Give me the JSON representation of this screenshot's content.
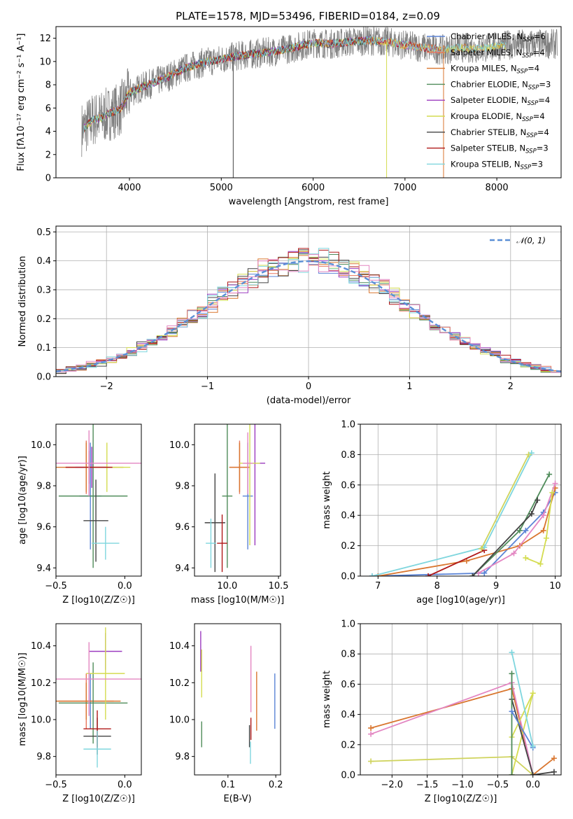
{
  "colors": {
    "Chabrier MILES": "#5b84d6",
    "Salpeter MILES": "#e8775e",
    "Kroupa MILES": "#d9762f",
    "Chabrier ELODIE": "#4f8c5a",
    "Salpeter ELODIE": "#9b3bbf",
    "Kroupa ELODIE": "#d4dc50",
    "Chabrier STELIB": "#444444",
    "Salpeter STELIB": "#b01818",
    "Kroupa STELIB": "#7fd6de",
    "pink": "#e386c2",
    "olive": "#cfd35c",
    "normal": "#5b8fd6"
  },
  "chart_data": [
    {
      "id": "spectrum",
      "type": "line",
      "title": "PLATE=1578, MJD=53496, FIBERID=0184, z=0.09",
      "xlabel": "wavelength [Angstrom, rest frame]",
      "ylabel": "Flux [fλ10⁻¹⁷ erg cm⁻² s⁻¹ A⁻¹]",
      "xlim": [
        3200,
        8700
      ],
      "ylim": [
        0,
        13
      ],
      "xticks": [
        4000,
        5000,
        6000,
        7000,
        8000
      ],
      "yticks": [
        0,
        2,
        4,
        6,
        8,
        10,
        12
      ],
      "grid": false,
      "legend_position": "top-right",
      "legend": [
        {
          "label": "Chabrier MILES, N",
          "sub": "SSP",
          "suffix": "=6",
          "series": "Chabrier MILES"
        },
        {
          "label": "Salpeter MILES, N",
          "sub": "SSP",
          "suffix": "=4",
          "series": "Salpeter MILES"
        },
        {
          "label": "Kroupa MILES, N",
          "sub": "SSP",
          "suffix": "=4",
          "series": "Kroupa MILES"
        },
        {
          "label": "Chabrier ELODIE, N",
          "sub": "SSP",
          "suffix": "=3",
          "series": "Chabrier ELODIE"
        },
        {
          "label": "Salpeter ELODIE, N",
          "sub": "SSP",
          "suffix": "=4",
          "series": "Salpeter ELODIE"
        },
        {
          "label": "Kroupa ELODIE, N",
          "sub": "SSP",
          "suffix": "=4",
          "series": "Kroupa ELODIE"
        },
        {
          "label": "Chabrier STELIB, N",
          "sub": "SSP",
          "suffix": "=4",
          "series": "Chabrier STELIB"
        },
        {
          "label": "Salpeter STELIB, N",
          "sub": "SSP",
          "suffix": "=3",
          "series": "Salpeter STELIB"
        },
        {
          "label": "Kroupa STELIB, N",
          "sub": "SSP",
          "suffix": "=3",
          "series": "Kroupa STELIB"
        }
      ],
      "continuum": {
        "x": [
          3500,
          3600,
          3700,
          3800,
          3900,
          4000,
          4200,
          4400,
          4600,
          4800,
          5000,
          5200,
          5400,
          5600,
          5800,
          6000,
          6200,
          6400,
          6600,
          6800,
          7000,
          7200,
          7400,
          7600,
          7800,
          8000,
          8200
        ],
        "y": [
          4.2,
          5.0,
          5.2,
          5.6,
          5.9,
          7.3,
          8.0,
          8.6,
          9.4,
          9.9,
          10.2,
          10.5,
          10.7,
          10.9,
          11.2,
          11.6,
          11.5,
          11.7,
          11.8,
          11.7,
          11.4,
          11.2,
          11.0,
          11.2,
          11.1,
          11.3,
          11.5
        ]
      }
    },
    {
      "id": "residuals",
      "type": "line",
      "xlabel": "(data-model)/error",
      "ylabel": "Normed distribution",
      "xlim": [
        -2.5,
        2.5
      ],
      "ylim": [
        0,
        0.52
      ],
      "xticks": [
        -2,
        -1,
        0,
        1,
        2
      ],
      "yticks": [
        0.0,
        0.1,
        0.2,
        0.3,
        0.4,
        0.5
      ],
      "grid": true,
      "legend_position": "top-right",
      "legend": [
        "𝒩(0, 1)"
      ],
      "normal": {
        "mean": 0,
        "sigma": 1
      }
    },
    {
      "id": "age-vs-Z",
      "type": "scatter",
      "xlabel": "Z [log10(Z/Z☉)]",
      "ylabel": "age  [log10(age/yr)]",
      "xlim": [
        -0.5,
        0.12
      ],
      "ylim": [
        9.36,
        10.1
      ],
      "xticks": [
        -0.5,
        0.0
      ],
      "yticks": [
        9.4,
        9.6,
        9.8,
        10.0
      ],
      "points": [
        {
          "series": "Chabrier MILES",
          "x": -0.25,
          "y": 9.75,
          "xerr": 0.08,
          "yerr": 0.26
        },
        {
          "series": "Salpeter MILES",
          "x": -0.28,
          "y": 9.89,
          "xerr": 0.15,
          "yerr": 0.13
        },
        {
          "series": "Kroupa MILES",
          "x": -0.28,
          "y": 9.89,
          "xerr": 0.27,
          "yerr": 0.12
        },
        {
          "series": "Chabrier ELODIE",
          "x": -0.23,
          "y": 9.75,
          "xerr": 0.25,
          "yerr": 0.35
        },
        {
          "series": "Salpeter ELODIE",
          "x": -0.24,
          "y": 9.89,
          "xerr": 0.12,
          "yerr": 0.1
        },
        {
          "series": "Kroupa ELODIE",
          "x": -0.13,
          "y": 9.89,
          "xerr": 0.17,
          "yerr": 0.12
        },
        {
          "series": "Chabrier STELIB",
          "x": -0.21,
          "y": 9.63,
          "xerr": 0.09,
          "yerr": 0.2
        },
        {
          "series": "Salpeter STELIB",
          "x": -0.26,
          "y": 9.89,
          "xerr": 0.17,
          "yerr": 0.08
        },
        {
          "series": "Kroupa STELIB",
          "x": -0.14,
          "y": 9.52,
          "xerr": 0.1,
          "yerr": 0.08
        },
        {
          "series": "pink",
          "x": -0.26,
          "y": 9.91,
          "xerr": 0.55,
          "yerr": 0.16
        }
      ]
    },
    {
      "id": "age-vs-mass",
      "type": "scatter",
      "xlabel": "mass [log10(M/M☉)]",
      "ylabel": "",
      "xlim": [
        9.68,
        10.52
      ],
      "ylim": [
        9.36,
        10.1
      ],
      "xticks": [
        10.0,
        10.5
      ],
      "yticks": [
        9.4,
        9.6,
        9.8,
        10.0
      ],
      "points": [
        {
          "series": "Chabrier MILES",
          "x": 10.2,
          "y": 9.75,
          "xerr": 0.05,
          "yerr": 0.26
        },
        {
          "series": "Salpeter MILES",
          "x": 10.12,
          "y": 9.89,
          "xerr": 0.1,
          "yerr": 0.13
        },
        {
          "series": "Kroupa MILES",
          "x": 10.12,
          "y": 9.89,
          "xerr": 0.1,
          "yerr": 0.12
        },
        {
          "series": "Chabrier ELODIE",
          "x": 10.0,
          "y": 9.75,
          "xerr": 0.05,
          "yerr": 0.35
        },
        {
          "series": "Salpeter ELODIE",
          "x": 10.27,
          "y": 9.91,
          "xerr": 0.1,
          "yerr": 0.4
        },
        {
          "series": "Kroupa ELODIE",
          "x": 10.22,
          "y": 9.91,
          "xerr": 0.1,
          "yerr": 0.4
        },
        {
          "series": "Chabrier STELIB",
          "x": 9.88,
          "y": 9.62,
          "xerr": 0.1,
          "yerr": 0.24
        },
        {
          "series": "Salpeter STELIB",
          "x": 9.95,
          "y": 9.52,
          "xerr": 0.05,
          "yerr": 0.14
        },
        {
          "series": "Kroupa STELIB",
          "x": 9.84,
          "y": 9.52,
          "xerr": 0.05,
          "yerr": 0.12
        },
        {
          "series": "pink",
          "x": 10.2,
          "y": 9.91,
          "xerr": 0.05,
          "yerr": 0.15
        }
      ]
    },
    {
      "id": "weights-vs-age",
      "type": "line",
      "xlabel": "age  [log10(age/yr)]",
      "ylabel": "mass weight",
      "xlim": [
        6.7,
        10.1
      ],
      "ylim": [
        0,
        1.0
      ],
      "xticks": [
        7,
        8,
        9,
        10
      ],
      "yticks": [
        0.0,
        0.2,
        0.4,
        0.6,
        0.8,
        1.0
      ],
      "grid": true,
      "series": [
        {
          "series": "Chabrier MILES",
          "x": [
            6.9,
            8.8,
            9.5,
            9.8,
            10.0
          ],
          "y": [
            0.0,
            0.02,
            0.3,
            0.42,
            0.55
          ]
        },
        {
          "series": "Kroupa MILES",
          "x": [
            7.0,
            8.5,
            9.4,
            9.8,
            10.0
          ],
          "y": [
            0.0,
            0.1,
            0.2,
            0.3,
            0.58
          ]
        },
        {
          "series": "pink",
          "x": [
            8.7,
            9.3,
            9.8,
            10.0
          ],
          "y": [
            0.02,
            0.15,
            0.4,
            0.61
          ]
        },
        {
          "series": "Chabrier ELODIE",
          "x": [
            8.6,
            9.4,
            9.9
          ],
          "y": [
            0.0,
            0.3,
            0.67
          ]
        },
        {
          "series": "Chabrier STELIB",
          "x": [
            8.6,
            9.6,
            9.7
          ],
          "y": [
            0.0,
            0.41,
            0.5
          ]
        },
        {
          "series": "Salpeter STELIB",
          "x": [
            7.85,
            8.8
          ],
          "y": [
            0.0,
            0.17
          ]
        },
        {
          "series": "Kroupa ELODIE",
          "x": [
            9.5,
            9.75,
            9.85,
            9.95
          ],
          "y": [
            0.12,
            0.08,
            0.25,
            0.55
          ]
        },
        {
          "series": "Kroupa STELIB",
          "x": [
            6.9,
            8.8,
            9.6
          ],
          "y": [
            0.0,
            0.19,
            0.81
          ]
        },
        {
          "series": "olive",
          "x": [
            8.75,
            9.55
          ],
          "y": [
            0.18,
            0.8
          ]
        }
      ]
    },
    {
      "id": "mass-vs-Z",
      "type": "scatter",
      "xlabel": "Z [log10(Z/Z☉)]",
      "ylabel": "mass [log10(M/M☉)]",
      "xlim": [
        -0.5,
        0.12
      ],
      "ylim": [
        9.7,
        10.52
      ],
      "xticks": [
        -0.5,
        0.0
      ],
      "yticks": [
        9.8,
        10.0,
        10.2,
        10.4
      ],
      "points": [
        {
          "series": "Chabrier MILES",
          "x": -0.25,
          "y": 10.1,
          "xerr": 0.03,
          "yerr": 0.15
        },
        {
          "series": "Salpeter MILES",
          "x": -0.28,
          "y": 10.1,
          "xerr": 0.2,
          "yerr": 0.15
        },
        {
          "series": "Kroupa MILES",
          "x": -0.28,
          "y": 10.1,
          "xerr": 0.25,
          "yerr": 0.1
        },
        {
          "series": "Chabrier ELODIE",
          "x": -0.23,
          "y": 10.09,
          "xerr": 0.25,
          "yerr": 0.22
        },
        {
          "series": "Salpeter ELODIE",
          "x": -0.14,
          "y": 10.37,
          "xerr": 0.12,
          "yerr": 0.1
        },
        {
          "series": "Kroupa ELODIE",
          "x": -0.14,
          "y": 10.25,
          "xerr": 0.14,
          "yerr": 0.25
        },
        {
          "series": "Chabrier STELIB",
          "x": -0.2,
          "y": 9.91,
          "xerr": 0.1,
          "yerr": 0.1
        },
        {
          "series": "Salpeter STELIB",
          "x": -0.2,
          "y": 9.95,
          "xerr": 0.1,
          "yerr": 0.1
        },
        {
          "series": "Kroupa STELIB",
          "x": -0.2,
          "y": 9.84,
          "xerr": 0.1,
          "yerr": 0.1
        },
        {
          "series": "pink",
          "x": -0.26,
          "y": 10.22,
          "xerr": 0.55,
          "yerr": 0.2
        }
      ]
    },
    {
      "id": "mass-vs-EBV",
      "type": "scatter",
      "xlabel": "E(B-V)",
      "ylabel": "",
      "xlim": [
        0.03,
        0.21
      ],
      "ylim": [
        9.7,
        10.52
      ],
      "xticks": [
        0.1,
        0.2
      ],
      "yticks": [
        9.8,
        10.0,
        10.2,
        10.4
      ],
      "points": [
        {
          "series": "Chabrier MILES",
          "x": 0.198,
          "y": 10.1,
          "xerr": 0.0,
          "yerr": 0.15
        },
        {
          "series": "Kroupa MILES",
          "x": 0.16,
          "y": 10.1,
          "xerr": 0.0,
          "yerr": 0.16
        },
        {
          "series": "Salpeter STELIB",
          "x": 0.148,
          "y": 9.95,
          "xerr": 0.0,
          "yerr": 0.06
        },
        {
          "series": "Chabrier STELIB",
          "x": 0.145,
          "y": 9.91,
          "xerr": 0.0,
          "yerr": 0.06
        },
        {
          "series": "Kroupa STELIB",
          "x": 0.147,
          "y": 9.82,
          "xerr": 0.0,
          "yerr": 0.06
        },
        {
          "series": "pink",
          "x": 0.148,
          "y": 10.22,
          "xerr": 0.0,
          "yerr": 0.18
        },
        {
          "series": "Salpeter ELODIE",
          "x": 0.043,
          "y": 10.37,
          "xerr": 0.0,
          "yerr": 0.11
        },
        {
          "series": "Kroupa ELODIE",
          "x": 0.045,
          "y": 10.25,
          "xerr": 0.0,
          "yerr": 0.13
        },
        {
          "series": "Chabrier ELODIE",
          "x": 0.045,
          "y": 9.92,
          "xerr": 0.0,
          "yerr": 0.07
        }
      ]
    },
    {
      "id": "weights-vs-Z",
      "type": "line",
      "xlabel": "Z [log10(Z/Z☉)]",
      "ylabel": "mass weight",
      "xlim": [
        -2.45,
        0.4
      ],
      "ylim": [
        0,
        1.0
      ],
      "xticks": [
        -2.0,
        -1.5,
        -1.0,
        -0.5,
        0.0
      ],
      "yticks": [
        0.0,
        0.2,
        0.4,
        0.6,
        0.8,
        1.0
      ],
      "grid": true,
      "series": [
        {
          "series": "Kroupa MILES",
          "x": [
            -2.3,
            -0.3,
            0.0,
            0.3
          ],
          "y": [
            0.31,
            0.57,
            0.0,
            0.11
          ]
        },
        {
          "series": "pink",
          "x": [
            -2.3,
            -0.3,
            0.0
          ],
          "y": [
            0.27,
            0.61,
            0.0
          ]
        },
        {
          "series": "olive",
          "x": [
            -2.3,
            -0.3,
            0.0
          ],
          "y": [
            0.09,
            0.12,
            0.0
          ]
        },
        {
          "series": "Kroupa ELODIE",
          "x": [
            -0.3,
            0.0,
            -0.3
          ],
          "y": [
            0.25,
            0.54,
            0.0
          ]
        },
        {
          "series": "Chabrier STELIB",
          "x": [
            -0.3,
            0.0,
            0.3
          ],
          "y": [
            0.5,
            0.0,
            0.02
          ]
        },
        {
          "series": "Chabrier ELODIE",
          "x": [
            -0.3,
            -0.3
          ],
          "y": [
            0.67,
            0.0
          ]
        },
        {
          "series": "Chabrier MILES",
          "x": [
            -0.3,
            0.0
          ],
          "y": [
            0.42,
            0.18
          ]
        },
        {
          "series": "Kroupa STELIB",
          "x": [
            -0.3,
            0.0
          ],
          "y": [
            0.81,
            0.19
          ]
        }
      ]
    }
  ]
}
